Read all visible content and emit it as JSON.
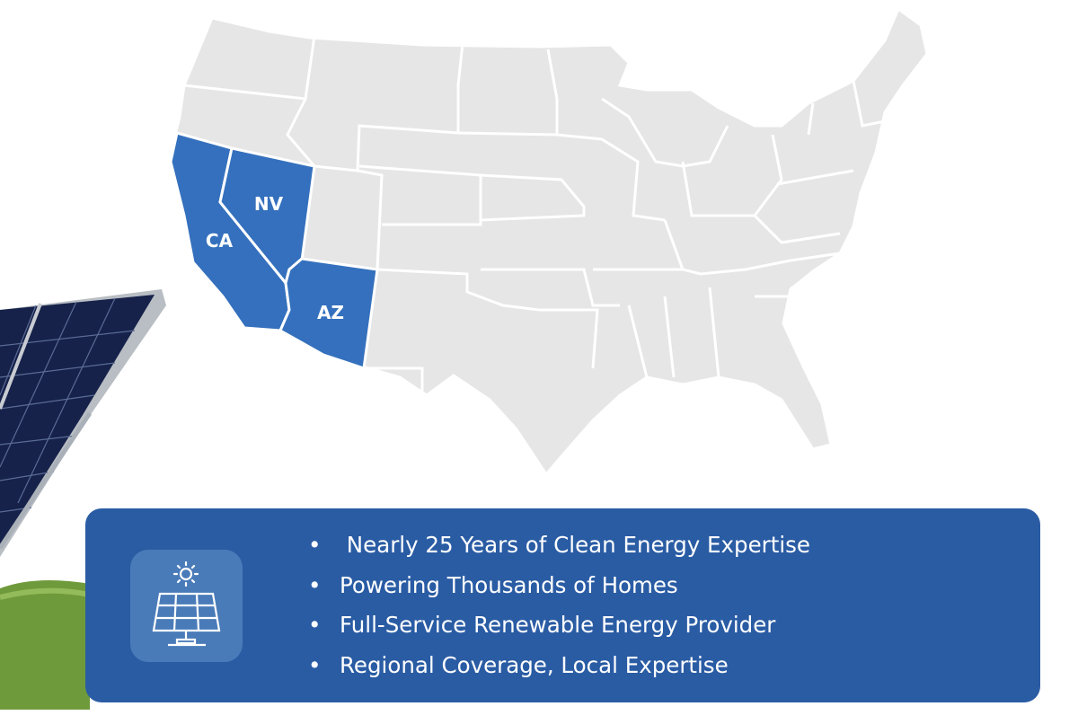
{
  "map": {
    "highlight_color": "#3470bd",
    "base_color": "#e6e6e6",
    "highlighted_states": [
      {
        "code": "CA",
        "label": "CA"
      },
      {
        "code": "NV",
        "label": "NV"
      },
      {
        "code": "AZ",
        "label": "AZ"
      }
    ]
  },
  "panel": {
    "background": "#2a5ca4",
    "icon": "solar-panel-sun-icon",
    "bullets": [
      " Nearly 25 Years of Clean Energy Expertise",
      "Powering Thousands of Homes",
      "Full-Service Renewable Energy Provider",
      "Regional Coverage, Local Expertise"
    ]
  }
}
